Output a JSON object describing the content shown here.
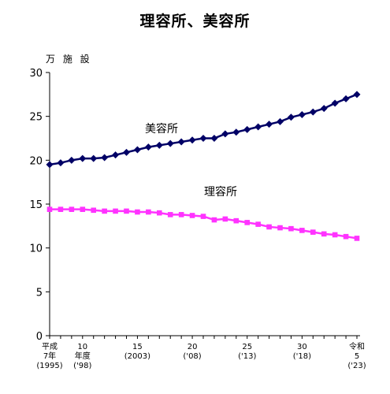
{
  "chart_data": {
    "type": "line",
    "title": "理容所、美容所",
    "unit_label": "万 施 設",
    "ylim": [
      0,
      30
    ],
    "yticks": [
      0,
      5,
      10,
      15,
      20,
      25,
      30
    ],
    "grid": false,
    "x_years": [
      1995,
      1996,
      1997,
      1998,
      1999,
      2000,
      2001,
      2002,
      2003,
      2004,
      2005,
      2006,
      2007,
      2008,
      2009,
      2010,
      2011,
      2012,
      2013,
      2014,
      2015,
      2016,
      2017,
      2018,
      2019,
      2020,
      2021,
      2022,
      2023
    ],
    "x_tick_labels": [
      {
        "year": 1995,
        "lines": [
          "平成",
          "7年",
          "(1995)"
        ]
      },
      {
        "year": 1998,
        "lines": [
          "10",
          "年度",
          "('98)"
        ]
      },
      {
        "year": 2003,
        "lines": [
          "15",
          "(2003)"
        ]
      },
      {
        "year": 2008,
        "lines": [
          "20",
          "('08)"
        ]
      },
      {
        "year": 2013,
        "lines": [
          "25",
          "('13)"
        ]
      },
      {
        "year": 2018,
        "lines": [
          "30",
          "('18)"
        ]
      },
      {
        "year": 2023,
        "lines": [
          "令和",
          "5",
          "('23)"
        ]
      }
    ],
    "series": [
      {
        "name": "美容所",
        "color": "#000066",
        "marker": "diamond",
        "values": [
          19.5,
          19.7,
          20.0,
          20.2,
          20.2,
          20.3,
          20.6,
          20.9,
          21.2,
          21.5,
          21.7,
          21.9,
          22.1,
          22.3,
          22.5,
          22.5,
          23.0,
          23.2,
          23.5,
          23.8,
          24.1,
          24.4,
          24.9,
          25.2,
          25.5,
          25.9,
          26.5,
          27.0,
          27.5
        ]
      },
      {
        "name": "理容所",
        "color": "#FF33FF",
        "marker": "square",
        "values": [
          14.4,
          14.4,
          14.4,
          14.4,
          14.3,
          14.2,
          14.2,
          14.2,
          14.1,
          14.1,
          14.0,
          13.8,
          13.8,
          13.7,
          13.6,
          13.2,
          13.3,
          13.1,
          12.9,
          12.7,
          12.4,
          12.3,
          12.2,
          12.0,
          11.8,
          11.6,
          11.5,
          11.3,
          11.1
        ]
      }
    ]
  }
}
